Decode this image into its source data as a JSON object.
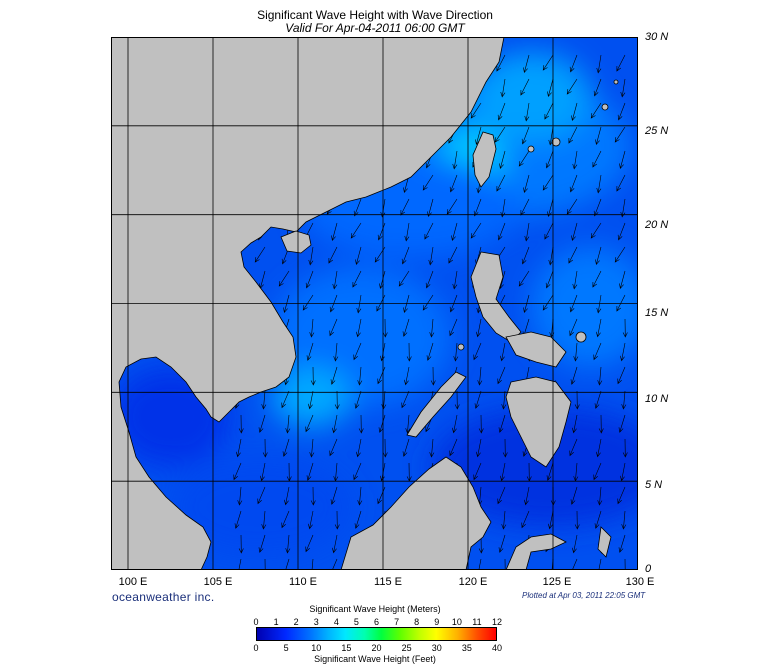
{
  "title": "Significant Wave Height with Wave Direction",
  "subtitle": "Valid For Apr-04-2011 06:00 GMT",
  "lat_labels": [
    "30 N",
    "25 N",
    "20 N",
    "15 N",
    "10 N",
    "5 N",
    "0"
  ],
  "lon_labels": [
    "100 E",
    "105 E",
    "110 E",
    "115 E",
    "120 E",
    "125 E",
    "130 E"
  ],
  "brand": "oceanweather inc.",
  "plotted": "Plotted at Apr 03, 2011 22:05 GMT",
  "colorbar": {
    "title_top": "Significant Wave Height (Meters)",
    "title_bottom": "Significant Wave Height (Feet)",
    "meters": [
      "0",
      "1",
      "2",
      "3",
      "4",
      "5",
      "6",
      "7",
      "8",
      "9",
      "10",
      "11",
      "12"
    ],
    "feet": [
      "0",
      "5",
      "10",
      "15",
      "20",
      "25",
      "30",
      "35",
      "40"
    ],
    "colors": [
      "#0000b0",
      "#0028ff",
      "#0070ff",
      "#00b4ff",
      "#00e8ff",
      "#00ffb0",
      "#00ff40",
      "#60ff00",
      "#c0ff00",
      "#ffff00",
      "#ffb000",
      "#ff5000",
      "#ff0000"
    ]
  },
  "map": {
    "lon_range": [
      99,
      130
    ],
    "lat_range": [
      0,
      30
    ],
    "land_color": "#c0c0c0",
    "sea_base_color": "#0050f0"
  }
}
